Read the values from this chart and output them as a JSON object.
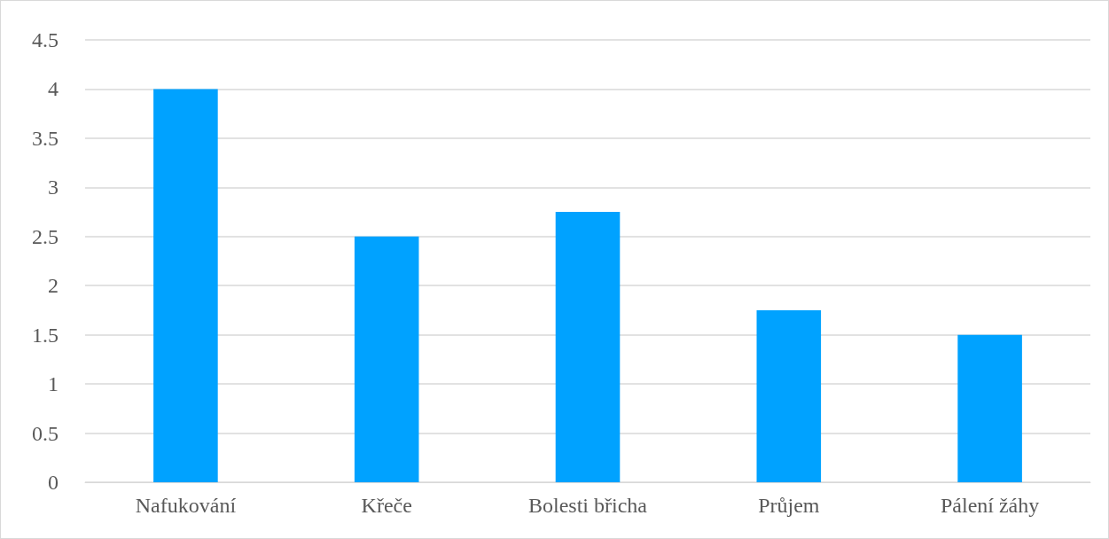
{
  "chart_data": {
    "type": "bar",
    "categories": [
      "Nafukování",
      "Křeče",
      "Bolesti břicha",
      "Průjem",
      "Pálení žáhy"
    ],
    "values": [
      4,
      2.5,
      2.75,
      1.75,
      1.5
    ],
    "color": "#00a2ff",
    "ylim": [
      0,
      4.5
    ],
    "yticks": [
      0,
      0.5,
      1,
      1.5,
      2,
      2.5,
      3,
      3.5,
      4,
      4.5
    ],
    "grid": "y"
  }
}
